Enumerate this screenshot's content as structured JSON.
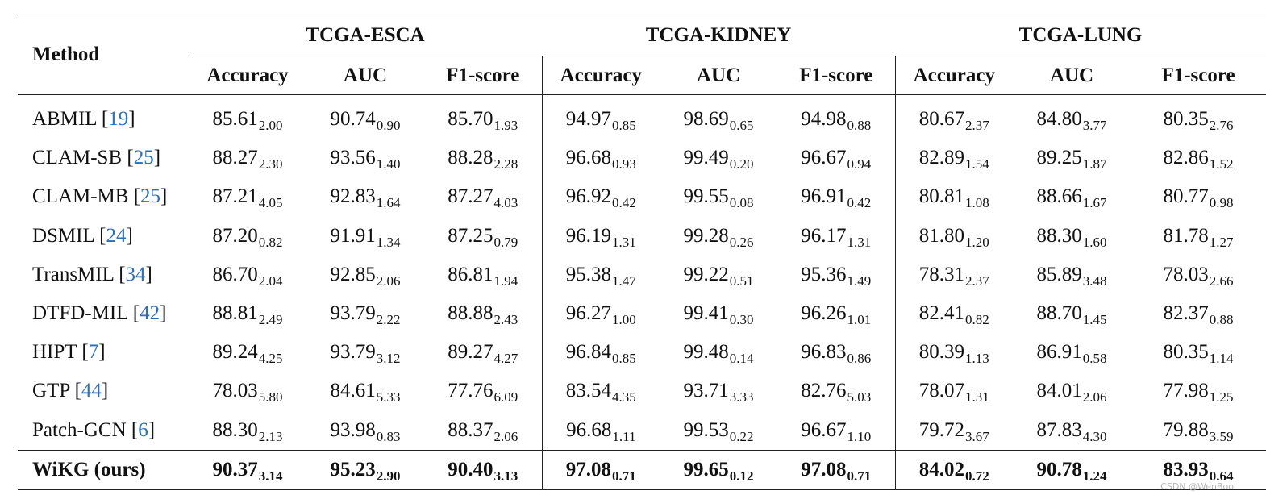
{
  "table": {
    "method_header": "Method",
    "groups": [
      "TCGA-ESCA",
      "TCGA-KIDNEY",
      "TCGA-LUNG"
    ],
    "metrics": [
      "Accuracy",
      "AUC",
      "F1-score"
    ],
    "rows": [
      {
        "name": "ABMIL",
        "ref": "19",
        "values": [
          [
            "85.61",
            "2.00"
          ],
          [
            "90.74",
            "0.90"
          ],
          [
            "85.70",
            "1.93"
          ],
          [
            "94.97",
            "0.85"
          ],
          [
            "98.69",
            "0.65"
          ],
          [
            "94.98",
            "0.88"
          ],
          [
            "80.67",
            "2.37"
          ],
          [
            "84.80",
            "3.77"
          ],
          [
            "80.35",
            "2.76"
          ]
        ]
      },
      {
        "name": "CLAM-SB",
        "ref": "25",
        "values": [
          [
            "88.27",
            "2.30"
          ],
          [
            "93.56",
            "1.40"
          ],
          [
            "88.28",
            "2.28"
          ],
          [
            "96.68",
            "0.93"
          ],
          [
            "99.49",
            "0.20"
          ],
          [
            "96.67",
            "0.94"
          ],
          [
            "82.89",
            "1.54"
          ],
          [
            "89.25",
            "1.87"
          ],
          [
            "82.86",
            "1.52"
          ]
        ]
      },
      {
        "name": "CLAM-MB",
        "ref": "25",
        "values": [
          [
            "87.21",
            "4.05"
          ],
          [
            "92.83",
            "1.64"
          ],
          [
            "87.27",
            "4.03"
          ],
          [
            "96.92",
            "0.42"
          ],
          [
            "99.55",
            "0.08"
          ],
          [
            "96.91",
            "0.42"
          ],
          [
            "80.81",
            "1.08"
          ],
          [
            "88.66",
            "1.67"
          ],
          [
            "80.77",
            "0.98"
          ]
        ]
      },
      {
        "name": "DSMIL",
        "ref": "24",
        "values": [
          [
            "87.20",
            "0.82"
          ],
          [
            "91.91",
            "1.34"
          ],
          [
            "87.25",
            "0.79"
          ],
          [
            "96.19",
            "1.31"
          ],
          [
            "99.28",
            "0.26"
          ],
          [
            "96.17",
            "1.31"
          ],
          [
            "81.80",
            "1.20"
          ],
          [
            "88.30",
            "1.60"
          ],
          [
            "81.78",
            "1.27"
          ]
        ]
      },
      {
        "name": "TransMIL",
        "ref": "34",
        "values": [
          [
            "86.70",
            "2.04"
          ],
          [
            "92.85",
            "2.06"
          ],
          [
            "86.81",
            "1.94"
          ],
          [
            "95.38",
            "1.47"
          ],
          [
            "99.22",
            "0.51"
          ],
          [
            "95.36",
            "1.49"
          ],
          [
            "78.31",
            "2.37"
          ],
          [
            "85.89",
            "3.48"
          ],
          [
            "78.03",
            "2.66"
          ]
        ]
      },
      {
        "name": "DTFD-MIL",
        "ref": "42",
        "values": [
          [
            "88.81",
            "2.49"
          ],
          [
            "93.79",
            "2.22"
          ],
          [
            "88.88",
            "2.43"
          ],
          [
            "96.27",
            "1.00"
          ],
          [
            "99.41",
            "0.30"
          ],
          [
            "96.26",
            "1.01"
          ],
          [
            "82.41",
            "0.82"
          ],
          [
            "88.70",
            "1.45"
          ],
          [
            "82.37",
            "0.88"
          ]
        ]
      },
      {
        "name": "HIPT",
        "ref": "7",
        "values": [
          [
            "89.24",
            "4.25"
          ],
          [
            "93.79",
            "3.12"
          ],
          [
            "89.27",
            "4.27"
          ],
          [
            "96.84",
            "0.85"
          ],
          [
            "99.48",
            "0.14"
          ],
          [
            "96.83",
            "0.86"
          ],
          [
            "80.39",
            "1.13"
          ],
          [
            "86.91",
            "0.58"
          ],
          [
            "80.35",
            "1.14"
          ]
        ]
      },
      {
        "name": "GTP",
        "ref": "44",
        "values": [
          [
            "78.03",
            "5.80"
          ],
          [
            "84.61",
            "5.33"
          ],
          [
            "77.76",
            "6.09"
          ],
          [
            "83.54",
            "4.35"
          ],
          [
            "93.71",
            "3.33"
          ],
          [
            "82.76",
            "5.03"
          ],
          [
            "78.07",
            "1.31"
          ],
          [
            "84.01",
            "2.06"
          ],
          [
            "77.98",
            "1.25"
          ]
        ]
      },
      {
        "name": "Patch-GCN",
        "ref": "6",
        "values": [
          [
            "88.30",
            "2.13"
          ],
          [
            "93.98",
            "0.83"
          ],
          [
            "88.37",
            "2.06"
          ],
          [
            "96.68",
            "1.11"
          ],
          [
            "99.53",
            "0.22"
          ],
          [
            "96.67",
            "1.10"
          ],
          [
            "79.72",
            "3.67"
          ],
          [
            "87.83",
            "4.30"
          ],
          [
            "79.88",
            "3.59"
          ]
        ]
      }
    ],
    "ours": {
      "name": "WiKG (ours)",
      "values": [
        [
          "90.37",
          "3.14"
        ],
        [
          "95.23",
          "2.90"
        ],
        [
          "90.40",
          "3.13"
        ],
        [
          "97.08",
          "0.71"
        ],
        [
          "99.65",
          "0.12"
        ],
        [
          "97.08",
          "0.71"
        ],
        [
          "84.02",
          "0.72"
        ],
        [
          "90.78",
          "1.24"
        ],
        [
          "83.93",
          "0.64"
        ]
      ]
    }
  },
  "watermark": "CSDN @WenBoo"
}
